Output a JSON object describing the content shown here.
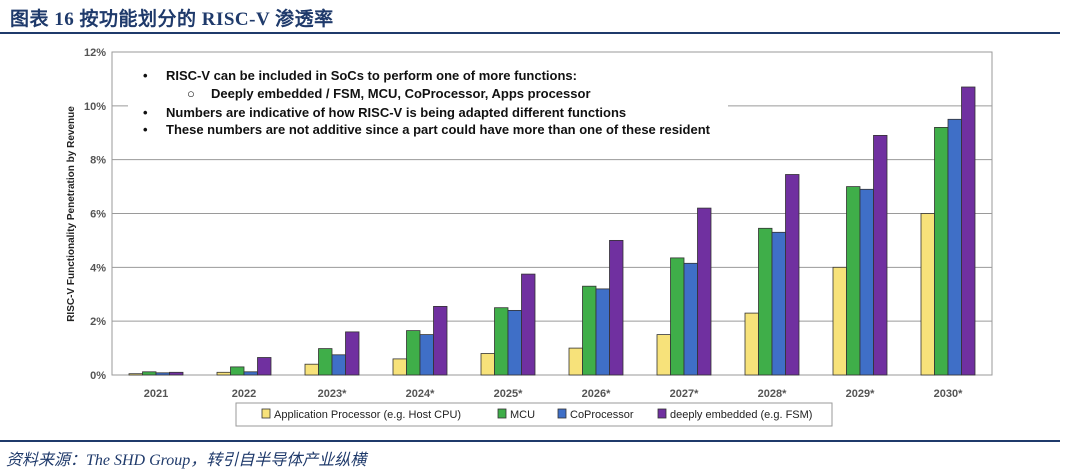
{
  "header": {
    "title": "图表 16    按功能划分的 RISC-V 渗透率"
  },
  "source": "资料来源：The SHD Group，转引自半导体产业纵横",
  "colors": {
    "header_blue": "#1f3a6b",
    "app": "#f7e27a",
    "mcu": "#3fae49",
    "copro": "#3f6fc7",
    "deep": "#7030a0"
  },
  "notes": [
    {
      "bullet": "•",
      "text": "RISC-V can be included in SoCs to perform one of more functions:"
    },
    {
      "bullet": "○",
      "text": "Deeply embedded / FSM, MCU, CoProcessor, Apps processor"
    },
    {
      "bullet": "•",
      "text": "Numbers are indicative of how RISC-V is being adapted different functions"
    },
    {
      "bullet": "•",
      "text": "These numbers are not additive since a part could have more than one of these resident"
    }
  ],
  "chart_data": {
    "type": "bar",
    "title": "",
    "xlabel": "",
    "ylabel": "RISC-V Functionality Penetration by Revenue",
    "ylim": [
      0,
      12
    ],
    "yticks": [
      "0%",
      "2%",
      "4%",
      "6%",
      "8%",
      "10%",
      "12%"
    ],
    "grid": true,
    "legend_position": "bottom",
    "categories": [
      "2021",
      "2022",
      "2023*",
      "2024*",
      "2025*",
      "2026*",
      "2027*",
      "2028*",
      "2029*",
      "2030*"
    ],
    "series": [
      {
        "name": "Application Processor (e.g. Host CPU)",
        "color": "#f7e27a",
        "values": [
          0.05,
          0.1,
          0.4,
          0.6,
          0.8,
          1.0,
          1.5,
          2.3,
          4.0,
          6.0
        ]
      },
      {
        "name": "MCU",
        "color": "#3fae49",
        "values": [
          0.12,
          0.3,
          0.98,
          1.65,
          2.5,
          3.3,
          4.35,
          5.45,
          7.0,
          9.2
        ]
      },
      {
        "name": "CoProcessor",
        "color": "#3f6fc7",
        "values": [
          0.08,
          0.12,
          0.75,
          1.5,
          2.4,
          3.2,
          4.15,
          5.3,
          6.9,
          9.5
        ]
      },
      {
        "name": "deeply embedded (e.g. FSM)",
        "color": "#7030a0",
        "values": [
          0.1,
          0.65,
          1.6,
          2.55,
          3.75,
          5.0,
          6.2,
          7.45,
          8.9,
          10.7
        ]
      }
    ]
  }
}
